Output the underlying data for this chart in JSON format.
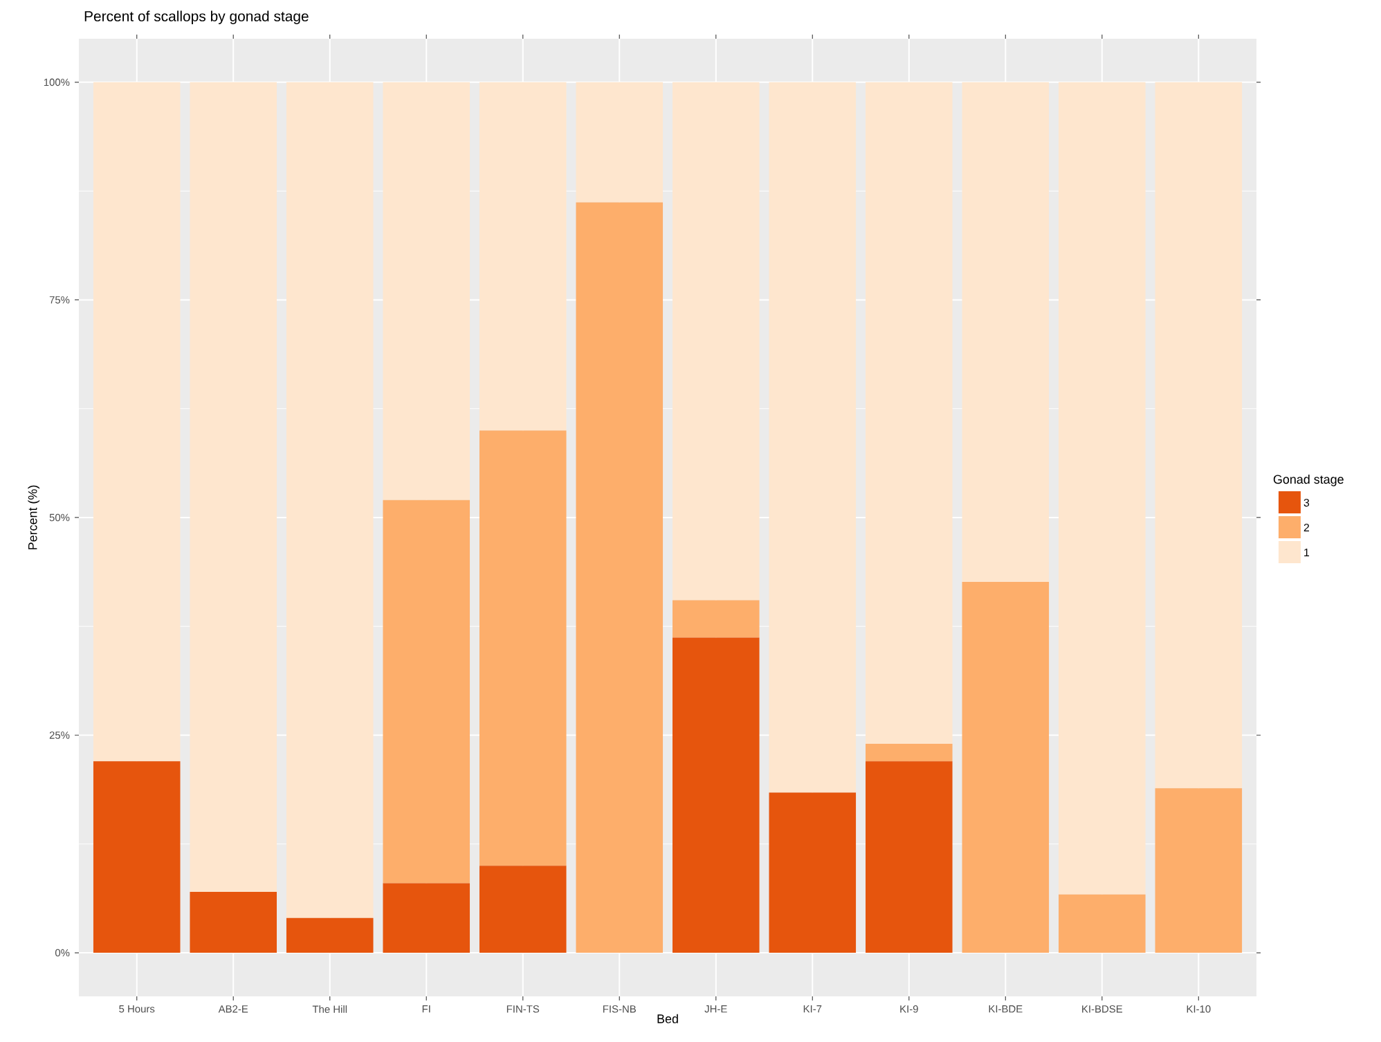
{
  "chart_data": {
    "type": "bar",
    "stacked": true,
    "title": "Percent of scallops by gonad stage",
    "xlabel": "Bed",
    "ylabel": "Percent (%)",
    "legend_title": "Gonad stage",
    "legend": "right",
    "grid": true,
    "categories": [
      "5 Hours",
      "AB2-E",
      "The Hill",
      "FI",
      "FIN-TS",
      "FIS-NB",
      "JH-E",
      "KI-7",
      "KI-9",
      "KI-BDE",
      "KI-BDSE",
      "KI-10"
    ],
    "series": [
      {
        "name": "3",
        "color": "#e6550d",
        "values": [
          22,
          7,
          4,
          8,
          10,
          0,
          36.2,
          18.4,
          22,
          0,
          0,
          0
        ]
      },
      {
        "name": "2",
        "color": "#fdae6b",
        "values": [
          0,
          0,
          0,
          44,
          50,
          86.2,
          4.3,
          0,
          2,
          42.6,
          6.7,
          18.9
        ]
      },
      {
        "name": "1",
        "color": "#fee6ce",
        "values": [
          78,
          93,
          96,
          48,
          40,
          13.8,
          59.5,
          81.6,
          76,
          57.4,
          93.3,
          81.1
        ]
      }
    ],
    "ylim": [
      -5,
      105
    ],
    "yticks": [
      {
        "value": 0,
        "label": "0%"
      },
      {
        "value": 25,
        "label": "25%"
      },
      {
        "value": 50,
        "label": "50%"
      },
      {
        "value": 75,
        "label": "75%"
      },
      {
        "value": 100,
        "label": "100%"
      }
    ]
  }
}
